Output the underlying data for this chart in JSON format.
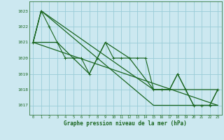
{
  "title": "Graphe pression niveau de la mer (hPa)",
  "bg_color": "#cce8f0",
  "grid_color": "#99ccd8",
  "line_color": "#1a6620",
  "xlim": [
    -0.5,
    23.5
  ],
  "ylim": [
    1016.4,
    1023.6
  ],
  "yticks": [
    1017,
    1018,
    1019,
    1020,
    1021,
    1022,
    1023
  ],
  "xticks": [
    0,
    1,
    2,
    3,
    4,
    5,
    6,
    7,
    8,
    9,
    10,
    11,
    12,
    13,
    14,
    15,
    16,
    17,
    18,
    19,
    20,
    21,
    22,
    23
  ],
  "series_hourly": {
    "x": [
      0,
      1,
      2,
      3,
      4,
      5,
      6,
      7,
      8,
      9,
      10,
      11,
      12,
      13,
      14,
      15,
      16,
      17,
      18,
      19,
      20,
      21,
      22,
      23
    ],
    "y": [
      1021.0,
      1023.0,
      1022.0,
      1021.0,
      1020.0,
      1020.0,
      1020.0,
      1019.0,
      1020.0,
      1021.0,
      1020.0,
      1020.0,
      1020.0,
      1020.0,
      1020.0,
      1018.0,
      1018.0,
      1018.0,
      1019.0,
      1018.0,
      1017.0,
      1017.0,
      1017.0,
      1018.0
    ]
  },
  "series_triangle1": {
    "x": [
      0,
      1,
      15,
      23
    ],
    "y": [
      1021.0,
      1023.0,
      1018.0,
      1018.0
    ]
  },
  "series_triangle2": {
    "x": [
      0,
      1,
      15,
      23
    ],
    "y": [
      1021.0,
      1023.0,
      1017.0,
      1017.0
    ]
  },
  "series_diag": {
    "x": [
      0,
      23
    ],
    "y": [
      1021.0,
      1017.0
    ]
  },
  "series_zigzag": {
    "x": [
      0,
      3,
      7,
      9,
      12,
      15,
      16,
      17,
      18,
      20,
      21,
      22,
      23
    ],
    "y": [
      1021.0,
      1021.0,
      1019.0,
      1021.0,
      1020.0,
      1018.0,
      1018.0,
      1018.0,
      1019.0,
      1017.0,
      1017.0,
      1017.0,
      1018.0
    ]
  }
}
